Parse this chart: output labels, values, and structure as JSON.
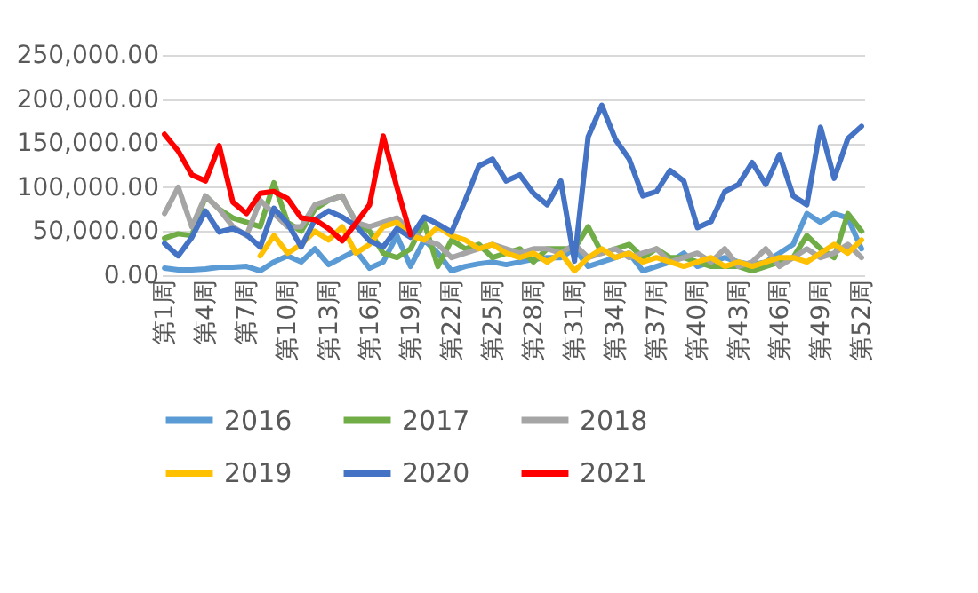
{
  "chart_data": {
    "type": "line",
    "categories": [
      "第1周",
      null,
      null,
      "第4周",
      null,
      null,
      "第7周",
      null,
      null,
      "第10周",
      null,
      null,
      "第13周",
      null,
      null,
      "第16周",
      null,
      null,
      "第19周",
      null,
      null,
      "第22周",
      null,
      null,
      "第25周",
      null,
      null,
      "第28周",
      null,
      null,
      "第31周",
      null,
      null,
      "第34周",
      null,
      null,
      "第37周",
      null,
      null,
      "第40周",
      null,
      null,
      "第43周",
      null,
      null,
      "第46周",
      null,
      null,
      "第49周",
      null,
      null,
      "第52周"
    ],
    "series": [
      {
        "name": "2016",
        "color": "#5b9bd5",
        "values": [
          8000,
          6000,
          6000,
          7000,
          9000,
          9000,
          10000,
          5000,
          15000,
          22000,
          15000,
          30000,
          12000,
          20000,
          28000,
          8000,
          15000,
          45000,
          10000,
          40000,
          25000,
          5000,
          10000,
          13000,
          15000,
          12000,
          15000,
          18000,
          20000,
          20000,
          30000,
          10000,
          15000,
          20000,
          25000,
          5000,
          10000,
          15000,
          25000,
          10000,
          15000,
          20000,
          15000,
          12000,
          15000,
          25000,
          35000,
          70000,
          60000,
          70000,
          65000,
          30000
        ]
      },
      {
        "name": "2017",
        "color": "#70ad47",
        "values": [
          42000,
          47000,
          45000,
          90000,
          75000,
          65000,
          60000,
          55000,
          105000,
          60000,
          50000,
          75000,
          85000,
          90000,
          60000,
          50000,
          25000,
          20000,
          30000,
          60000,
          10000,
          40000,
          30000,
          35000,
          20000,
          25000,
          30000,
          15000,
          30000,
          30000,
          30000,
          55000,
          25000,
          30000,
          35000,
          20000,
          30000,
          20000,
          20000,
          15000,
          10000,
          10000,
          10000,
          5000,
          10000,
          15000,
          20000,
          45000,
          30000,
          20000,
          70000,
          50000
        ]
      },
      {
        "name": "2018",
        "color": "#a5a5a5",
        "values": [
          70000,
          100000,
          55000,
          90000,
          75000,
          55000,
          45000,
          85000,
          70000,
          55000,
          55000,
          80000,
          85000,
          90000,
          60000,
          55000,
          60000,
          65000,
          50000,
          40000,
          35000,
          20000,
          25000,
          30000,
          35000,
          30000,
          25000,
          30000,
          30000,
          25000,
          35000,
          20000,
          25000,
          30000,
          20000,
          25000,
          30000,
          15000,
          20000,
          25000,
          15000,
          30000,
          10000,
          15000,
          30000,
          10000,
          20000,
          30000,
          20000,
          25000,
          35000,
          20000
        ]
      },
      {
        "name": "2019",
        "color": "#ffc000",
        "values": [
          null,
          null,
          null,
          null,
          null,
          null,
          null,
          22000,
          45000,
          25000,
          35000,
          50000,
          40000,
          55000,
          25000,
          35000,
          55000,
          60000,
          45000,
          40000,
          55000,
          45000,
          40000,
          30000,
          35000,
          25000,
          20000,
          25000,
          15000,
          25000,
          5000,
          20000,
          30000,
          20000,
          25000,
          15000,
          20000,
          15000,
          10000,
          15000,
          20000,
          10000,
          15000,
          10000,
          15000,
          20000,
          20000,
          15000,
          25000,
          35000,
          25000,
          40000
        ]
      },
      {
        "name": "2020",
        "color": "#4472c4",
        "values": [
          36000,
          22000,
          43000,
          73000,
          49000,
          53000,
          46000,
          32000,
          76000,
          59000,
          32000,
          63000,
          73000,
          66000,
          56000,
          39000,
          32000,
          53000,
          43000,
          66000,
          58000,
          49000,
          85000,
          124000,
          132000,
          107000,
          114000,
          93000,
          80000,
          107000,
          16000,
          157000,
          193000,
          154000,
          132000,
          90000,
          95000,
          119000,
          107000,
          54000,
          61000,
          95000,
          103000,
          128000,
          103000,
          137000,
          90000,
          80000,
          168000,
          110000,
          155000,
          169000
        ]
      },
      {
        "name": "2021",
        "color": "#ff0000",
        "values": [
          160000,
          141000,
          114000,
          107000,
          147000,
          83000,
          70000,
          93000,
          95000,
          87000,
          65000,
          63000,
          53000,
          39000,
          59000,
          80000,
          158000,
          100000,
          46000,
          null,
          null,
          null,
          null,
          null,
          null,
          null,
          null,
          null,
          null,
          null,
          null,
          null,
          null,
          null,
          null,
          null,
          null,
          null,
          null,
          null,
          null,
          null,
          null,
          null,
          null,
          null,
          null,
          null,
          null,
          null,
          null,
          null
        ]
      }
    ],
    "ylim": [
      0,
      250000
    ],
    "yticks": [
      {
        "value": 0,
        "label": "0.00"
      },
      {
        "value": 50000,
        "label": "50,000.00"
      },
      {
        "value": 100000,
        "label": "100,000.00"
      },
      {
        "value": 150000,
        "label": "150,000.00"
      },
      {
        "value": 200000,
        "label": "200,000.00"
      },
      {
        "value": 250000,
        "label": "250,000.00"
      }
    ],
    "grid": "y",
    "legend": "bottom",
    "marker": "none",
    "line_style": "solid"
  }
}
